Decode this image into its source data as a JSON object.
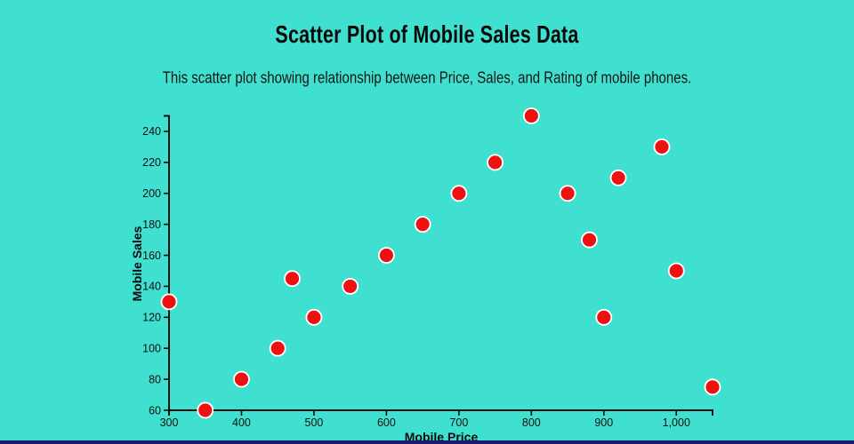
{
  "page": {
    "title": "Scatter Plot of Mobile Sales Data",
    "subtitle": "This scatter plot showing relationship between Price, Sales, and Rating of mobile phones."
  },
  "colors": {
    "background": "#40E0D0",
    "point_fill": "#EE1111",
    "point_stroke": "#FFFFFF",
    "axis_line": "#0d0d0d",
    "tick_text": "#111111",
    "axis_title_text": "#0a0a0a",
    "bottom_bar": "#191970"
  },
  "chart_data": {
    "type": "scatter",
    "title": "Scatter Plot of Mobile Sales Data",
    "subtitle": "This scatter plot showing relationship between Price, Sales, and Rating of mobile phones.",
    "xlabel": "Mobile Price",
    "ylabel": "Mobile Sales",
    "xlim": [
      300,
      1050
    ],
    "ylim": [
      60,
      250
    ],
    "grid": false,
    "legend": false,
    "x_ticks": [
      {
        "value": 300,
        "label": "300"
      },
      {
        "value": 400,
        "label": "400"
      },
      {
        "value": 500,
        "label": "500"
      },
      {
        "value": 600,
        "label": "600"
      },
      {
        "value": 700,
        "label": "700"
      },
      {
        "value": 800,
        "label": "800"
      },
      {
        "value": 900,
        "label": "900"
      },
      {
        "value": 1000,
        "label": "1,000"
      }
    ],
    "y_ticks": [
      {
        "value": 60,
        "label": "60"
      },
      {
        "value": 80,
        "label": "80"
      },
      {
        "value": 100,
        "label": "100"
      },
      {
        "value": 120,
        "label": "120"
      },
      {
        "value": 140,
        "label": "140"
      },
      {
        "value": 160,
        "label": "160"
      },
      {
        "value": 180,
        "label": "180"
      },
      {
        "value": 200,
        "label": "200"
      },
      {
        "value": 220,
        "label": "220"
      },
      {
        "value": 240,
        "label": "240"
      }
    ],
    "points": [
      {
        "x": 300,
        "y": 130
      },
      {
        "x": 350,
        "y": 60
      },
      {
        "x": 400,
        "y": 80
      },
      {
        "x": 450,
        "y": 100
      },
      {
        "x": 470,
        "y": 145
      },
      {
        "x": 500,
        "y": 120
      },
      {
        "x": 550,
        "y": 140
      },
      {
        "x": 600,
        "y": 160
      },
      {
        "x": 650,
        "y": 180
      },
      {
        "x": 700,
        "y": 200
      },
      {
        "x": 750,
        "y": 220
      },
      {
        "x": 800,
        "y": 250
      },
      {
        "x": 850,
        "y": 200
      },
      {
        "x": 880,
        "y": 170
      },
      {
        "x": 900,
        "y": 120
      },
      {
        "x": 920,
        "y": 210
      },
      {
        "x": 980,
        "y": 230
      },
      {
        "x": 1000,
        "y": 150
      },
      {
        "x": 1050,
        "y": 75
      }
    ],
    "marker": {
      "radius": 8.5,
      "stroke_width": 1.8
    }
  }
}
